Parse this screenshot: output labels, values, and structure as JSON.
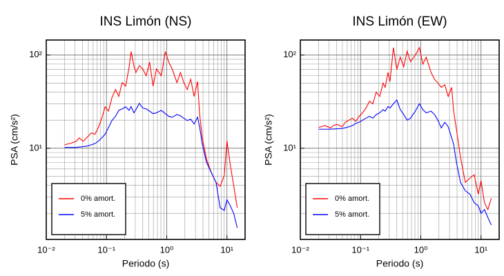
{
  "chart_data": [
    {
      "type": "line",
      "title": "INS Limón (NS)",
      "xlabel": "Periodo (s)",
      "ylabel": "PSA (cm/s²)",
      "xscale": "log",
      "yscale": "log",
      "grid": true,
      "legend": "lower left",
      "xlim": [
        0.01,
        20
      ],
      "ylim": [
        1.05,
        145
      ],
      "xticks": [
        {
          "value": 0.01,
          "label": "10⁻²"
        },
        {
          "value": 0.1,
          "label": "10⁻¹"
        },
        {
          "value": 1,
          "label": "10⁰"
        },
        {
          "value": 10,
          "label": "10¹"
        }
      ],
      "yticks": [
        {
          "value": 10,
          "label": "10¹"
        },
        {
          "value": 100,
          "label": "10²"
        }
      ],
      "xticks_minor": [
        0.02,
        0.03,
        0.04,
        0.05,
        0.06,
        0.07,
        0.08,
        0.09,
        0.2,
        0.3,
        0.4,
        0.5,
        0.6,
        0.7,
        0.8,
        0.9,
        2,
        3,
        4,
        5,
        6,
        7,
        8,
        9
      ],
      "yticks_minor": [
        2,
        3,
        4,
        5,
        6,
        7,
        8,
        9,
        20,
        30,
        40,
        50,
        60,
        70,
        80,
        90
      ],
      "x": [
        0.0203,
        0.0256,
        0.0316,
        0.0351,
        0.0411,
        0.0493,
        0.0562,
        0.0641,
        0.0731,
        0.0832,
        0.0949,
        0.108,
        0.123,
        0.141,
        0.16,
        0.182,
        0.208,
        0.237,
        0.256,
        0.285,
        0.308,
        0.351,
        0.4,
        0.456,
        0.52,
        0.593,
        0.676,
        0.811,
        0.949,
        1.08,
        1.23,
        1.48,
        1.69,
        1.92,
        2.19,
        2.5,
        2.85,
        3.25,
        3.51,
        3.9,
        4.56,
        5.48,
        6.58,
        7.7,
        9.01,
        10.0,
        11.4,
        13.0,
        14.8
      ],
      "series": [
        {
          "name": "0% amort.",
          "color": "#ff0000",
          "values": [
            10.9,
            11.3,
            11.9,
            12.9,
            11.9,
            13.4,
            14.6,
            14.1,
            16.7,
            20.8,
            27.8,
            25,
            34.8,
            42.7,
            36,
            50.6,
            46.4,
            73.6,
            109,
            77,
            65,
            77,
            71,
            60,
            84,
            46.4,
            71,
            60,
            109,
            84,
            71,
            50.6,
            65,
            50.6,
            42.7,
            55,
            36,
            52,
            23.5,
            12.9,
            7.7,
            5.5,
            4.3,
            3.9,
            5.1,
            12,
            6.5,
            3.9,
            2.3
          ]
        },
        {
          "name": "5% amort.",
          "color": "#0000ff",
          "values": [
            10.2,
            10.2,
            10.2,
            10.3,
            10.4,
            10.6,
            10.9,
            11.2,
            11.9,
            12.9,
            14.1,
            16.7,
            19.8,
            22,
            25.5,
            26.4,
            27.8,
            25.5,
            28,
            24,
            26,
            30.3,
            27,
            26.4,
            25,
            23.5,
            24,
            25.5,
            23.5,
            22,
            21.5,
            23,
            22.3,
            21,
            19.8,
            20.5,
            18.2,
            21.5,
            17,
            11,
            7.1,
            5.5,
            4.3,
            2.3,
            2.15,
            2.8,
            2.4,
            1.98,
            1.4
          ]
        }
      ]
    },
    {
      "type": "line",
      "title": "INS Limón (EW)",
      "xlabel": "Periodo (s)",
      "ylabel": "PSA (cm/s²)",
      "xscale": "log",
      "yscale": "log",
      "grid": true,
      "legend": "lower left",
      "xlim": [
        0.01,
        20
      ],
      "ylim": [
        1.05,
        145
      ],
      "xticks": [
        {
          "value": 0.01,
          "label": "10⁻²"
        },
        {
          "value": 0.1,
          "label": "10⁻¹"
        },
        {
          "value": 1,
          "label": "10⁰"
        },
        {
          "value": 10,
          "label": "10¹"
        }
      ],
      "yticks": [
        {
          "value": 10,
          "label": "10¹"
        },
        {
          "value": 100,
          "label": "10²"
        }
      ],
      "xticks_minor": [
        0.02,
        0.03,
        0.04,
        0.05,
        0.06,
        0.07,
        0.08,
        0.09,
        0.2,
        0.3,
        0.4,
        0.5,
        0.6,
        0.7,
        0.8,
        0.9,
        2,
        3,
        4,
        5,
        6,
        7,
        8,
        9
      ],
      "yticks_minor": [
        2,
        3,
        4,
        5,
        6,
        7,
        8,
        9,
        20,
        30,
        40,
        50,
        60,
        70,
        80,
        90
      ],
      "x": [
        0.0203,
        0.0256,
        0.0316,
        0.0351,
        0.0411,
        0.0493,
        0.0562,
        0.0641,
        0.0731,
        0.0832,
        0.0949,
        0.108,
        0.123,
        0.141,
        0.16,
        0.182,
        0.208,
        0.237,
        0.256,
        0.285,
        0.308,
        0.351,
        0.4,
        0.456,
        0.52,
        0.593,
        0.676,
        0.811,
        0.949,
        1.08,
        1.23,
        1.48,
        1.69,
        1.92,
        2.19,
        2.5,
        2.85,
        3.25,
        3.51,
        3.9,
        4.56,
        5.48,
        6.58,
        7.7,
        9.01,
        10.0,
        11.4,
        13.0,
        14.8
      ],
      "series": [
        {
          "name": "0% amort.",
          "color": "#ff0000",
          "values": [
            16.7,
            17.5,
            16.5,
            17.5,
            18,
            17,
            19,
            20,
            21,
            19.5,
            22,
            24,
            27,
            32,
            30,
            40,
            36,
            50,
            45,
            65,
            52,
            120,
            70,
            95,
            75,
            110,
            85,
            100,
            120,
            80,
            95,
            65,
            55,
            50,
            45,
            48,
            36,
            45,
            25,
            16,
            8,
            4.3,
            4.8,
            5.2,
            3.2,
            4.5,
            2.6,
            2.2,
            2.9
          ]
        },
        {
          "name": "5% amort.",
          "color": "#0000ff",
          "values": [
            16,
            16,
            16,
            16.1,
            16.2,
            16.3,
            16.6,
            17,
            17.5,
            18.5,
            19,
            20,
            21,
            22,
            21,
            23,
            24,
            26,
            25,
            28,
            27,
            30,
            33,
            26,
            23,
            20,
            21,
            25,
            30,
            26,
            24,
            25,
            23,
            20,
            16.5,
            19,
            17,
            13,
            11,
            7.1,
            4.3,
            3.5,
            3.2,
            2.6,
            2.4,
            2.0,
            2.2,
            1.8,
            1.5
          ]
        }
      ]
    }
  ]
}
